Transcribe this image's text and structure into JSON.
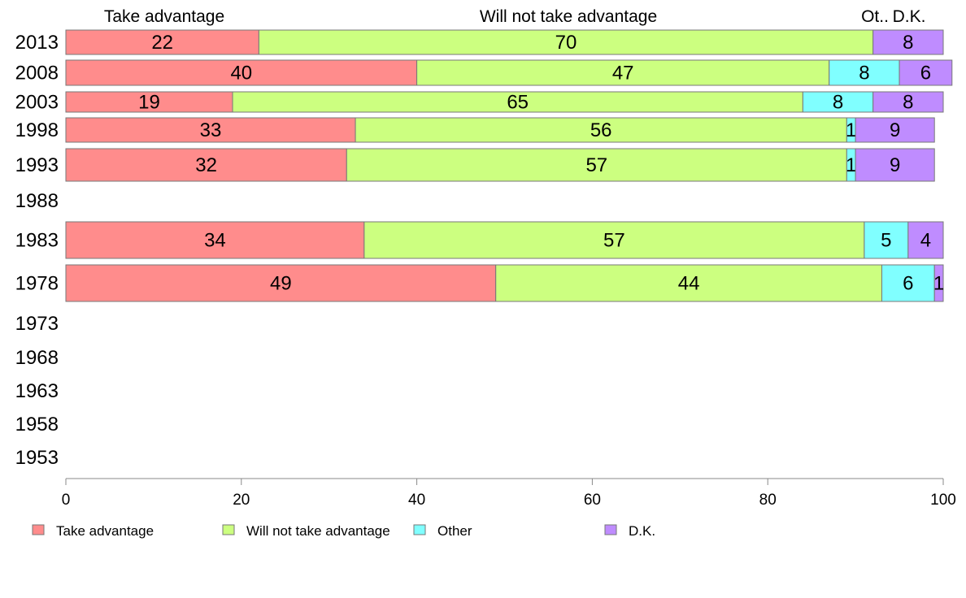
{
  "chart_data": {
    "type": "bar",
    "orientation": "horizontal",
    "stacked": true,
    "categories": [
      "2013",
      "2008",
      "2003",
      "1998",
      "1993",
      "1988",
      "1983",
      "1978",
      "1973",
      "1968",
      "1963",
      "1958",
      "1953"
    ],
    "series": [
      {
        "name": "Take advantage",
        "color": "#ff8c8c",
        "values": [
          22,
          40,
          19,
          33,
          32,
          null,
          34,
          49,
          null,
          null,
          null,
          null,
          null
        ]
      },
      {
        "name": "Will not take advantage",
        "color": "#ccff80",
        "values": [
          70,
          47,
          65,
          56,
          57,
          null,
          57,
          44,
          null,
          null,
          null,
          null,
          null
        ]
      },
      {
        "name": "Other",
        "color": "#80ffff",
        "values": [
          0,
          8,
          8,
          1,
          1,
          null,
          5,
          6,
          null,
          null,
          null,
          null,
          null
        ]
      },
      {
        "name": "D.K.",
        "color": "#bf8cff",
        "values": [
          8,
          6,
          8,
          9,
          9,
          null,
          4,
          1,
          null,
          null,
          null,
          null,
          null
        ]
      }
    ],
    "column_headers": [
      "Take advantage",
      "Will not take advantage",
      "Ot..",
      "D.K."
    ],
    "xlim": [
      0,
      100
    ],
    "xticks": [
      "0",
      "20",
      "40",
      "60",
      "80",
      "100"
    ],
    "legend": {
      "position": "bottom",
      "labels": [
        "Take advantage",
        "Will not take advantage",
        "Other",
        "D.K."
      ]
    },
    "grid": false
  }
}
